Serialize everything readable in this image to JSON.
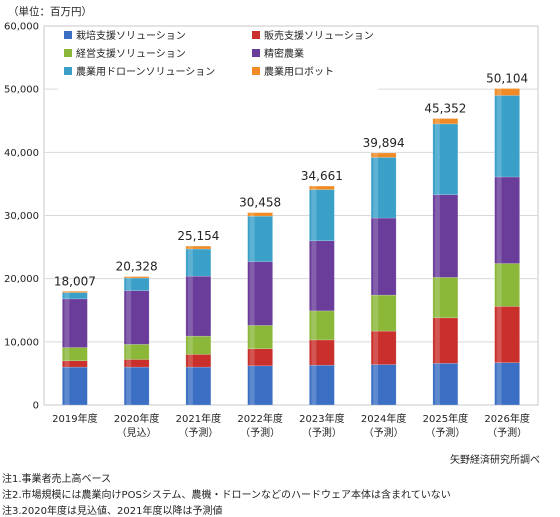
{
  "unit_label": "（単位：百万円）",
  "source": "矢野経済研究所調べ",
  "notes": [
    "注1.事業者売上高ベース",
    "注2.市場規模には農業向けPOSシステム、農機・ドローンなどのハードウェア本体は含まれていない",
    "注3.2020年度は見込値、2021年度以降は予測値"
  ],
  "colors": {
    "cultivation": "#3b6fc4",
    "sales": "#c9302c",
    "management": "#8cb83a",
    "precision": "#6a3d9a",
    "drone": "#3aa0c8",
    "robot": "#f08a24"
  },
  "chart_data": {
    "type": "bar",
    "stacked": true,
    "categories": [
      "2019年度",
      "2020年度",
      "2021年度",
      "2022年度",
      "2023年度",
      "2024年度",
      "2025年度",
      "2026年度"
    ],
    "category_sublabels": [
      "",
      "（見込）",
      "（予測）",
      "（予測）",
      "（予測）",
      "（予測）",
      "（予測）",
      "（予測）"
    ],
    "totals": [
      "18,007",
      "20,328",
      "25,154",
      "30,458",
      "34,661",
      "39,894",
      "45,352",
      "50,104"
    ],
    "ylim": [
      0,
      60000
    ],
    "yticks": [
      0,
      10000,
      20000,
      30000,
      40000,
      50000,
      60000
    ],
    "ytick_labels": [
      "0",
      "10,000",
      "20,000",
      "30,000",
      "40,000",
      "50,000",
      "60,000"
    ],
    "legend_position": "top-left",
    "series": [
      {
        "name": "栽培支援ソリューション",
        "color_key": "cultivation",
        "values": [
          6000,
          6000,
          6000,
          6200,
          6300,
          6400,
          6600,
          6700
        ]
      },
      {
        "name": "販売支援ソリューション",
        "color_key": "sales",
        "values": [
          1000,
          1200,
          2000,
          2700,
          4000,
          5300,
          7200,
          8900
        ]
      },
      {
        "name": "経営支援ソリューション",
        "color_key": "management",
        "values": [
          2100,
          2400,
          2900,
          3700,
          4600,
          5700,
          6400,
          6800
        ]
      },
      {
        "name": "精密農業",
        "color_key": "precision",
        "values": [
          7700,
          8500,
          9500,
          10100,
          11100,
          12200,
          13100,
          13700
        ]
      },
      {
        "name": "農業用ドローンソリューション",
        "color_key": "drone",
        "values": [
          1000,
          2000,
          4300,
          7200,
          8100,
          9600,
          11200,
          12900
        ]
      },
      {
        "name": "農業用ロボット",
        "color_key": "robot",
        "values": [
          207,
          228,
          454,
          558,
          561,
          694,
          852,
          1104
        ]
      }
    ]
  }
}
